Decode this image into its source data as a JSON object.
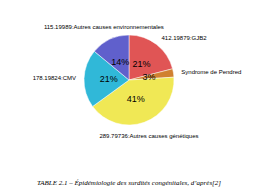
{
  "chart_data": {
    "type": "pie",
    "title": "TABLE 2.1 – Épidémiologie des surdités congénitales, d’après[2]",
    "categories": [
      "412.19879:GJB2",
      "Syndrome de Pendred",
      "289.79736:Autres causes génétiques",
      "178.19824:CMV",
      "115.19989:Autres causes environnementales"
    ],
    "values": [
      21,
      3,
      41,
      21,
      14
    ],
    "value_labels": [
      "21%",
      "3%",
      "41%",
      "21%",
      "14%"
    ],
    "data_labels": true,
    "colors": [
      "#e05555",
      "#d08030",
      "#f0e855",
      "#30b8d8",
      "#6060cc"
    ]
  }
}
